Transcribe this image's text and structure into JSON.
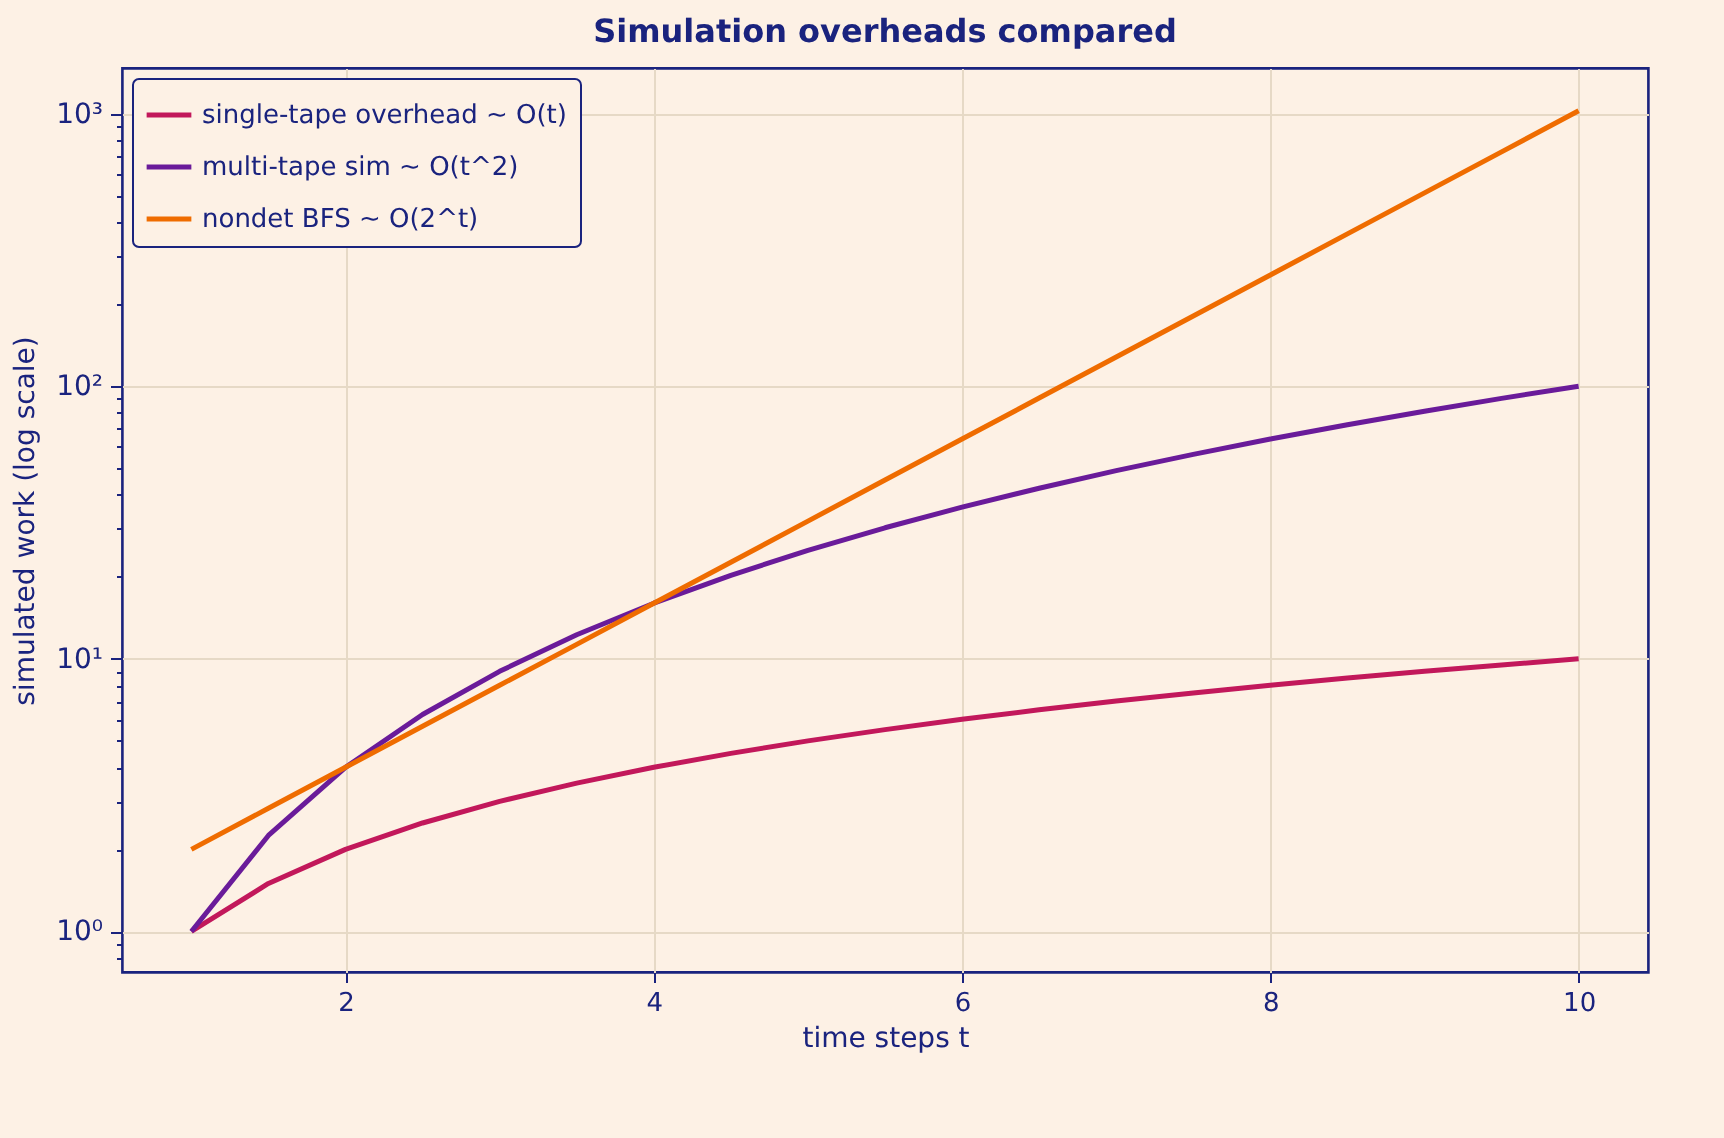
{
  "chart_data": {
    "type": "line",
    "title": "Simulation overheads compared",
    "xlabel": "time steps t",
    "ylabel": "simulated work (log scale)",
    "log": "y",
    "grid": true,
    "legend": "top left",
    "line_style": "solid",
    "marker": "none",
    "xlim": [
      0.55,
      10.45
    ],
    "xticks": [
      2,
      4,
      6,
      8,
      10
    ],
    "ylim": [
      0.71,
      1470
    ],
    "yticks": [
      {
        "value": 0.8,
        "label": null
      },
      {
        "value": 0.9,
        "label": null
      },
      {
        "value": 1,
        "label": "10⁰"
      },
      {
        "value": 2,
        "label": null
      },
      {
        "value": 3,
        "label": null
      },
      {
        "value": 4,
        "label": null
      },
      {
        "value": 5,
        "label": null
      },
      {
        "value": 6,
        "label": null
      },
      {
        "value": 7,
        "label": null
      },
      {
        "value": 8,
        "label": null
      },
      {
        "value": 9,
        "label": null
      },
      {
        "value": 10,
        "label": "10¹"
      },
      {
        "value": 20,
        "label": null
      },
      {
        "value": 30,
        "label": null
      },
      {
        "value": 40,
        "label": null
      },
      {
        "value": 50,
        "label": null
      },
      {
        "value": 60,
        "label": null
      },
      {
        "value": 70,
        "label": null
      },
      {
        "value": 80,
        "label": null
      },
      {
        "value": 90,
        "label": null
      },
      {
        "value": 100,
        "label": "10²"
      },
      {
        "value": 200,
        "label": null
      },
      {
        "value": 300,
        "label": null
      },
      {
        "value": 400,
        "label": null
      },
      {
        "value": 500,
        "label": null
      },
      {
        "value": 600,
        "label": null
      },
      {
        "value": 700,
        "label": null
      },
      {
        "value": 800,
        "label": null
      },
      {
        "value": 900,
        "label": null
      },
      {
        "value": 1000,
        "label": "10³"
      }
    ],
    "x": [
      1,
      1.5,
      2,
      2.5,
      3,
      3.5,
      4,
      4.5,
      5,
      5.5,
      6,
      6.5,
      7,
      7.5,
      8,
      8.5,
      9,
      9.5,
      10
    ],
    "series": [
      {
        "name": "single-tape overhead ~ O(t)",
        "color": "#c2185b",
        "values": [
          1,
          1.5,
          2,
          2.5,
          3,
          3.5,
          4,
          4.5,
          5,
          5.5,
          6,
          6.5,
          7,
          7.5,
          8,
          8.5,
          9,
          9.5,
          10
        ]
      },
      {
        "name": "multi-tape sim ~ O(t^2)",
        "color": "#6a1b9a",
        "values": [
          1,
          2.25,
          4,
          6.25,
          9,
          12.25,
          16,
          20.25,
          25,
          30.25,
          36,
          42.25,
          49,
          56.25,
          64,
          72.25,
          81,
          90.25,
          100
        ]
      },
      {
        "name": "nondet BFS ~ O(2^t)",
        "color": "#ef6c00",
        "values": [
          2,
          2.83,
          4,
          5.66,
          8,
          11.3,
          16,
          22.6,
          32,
          45.3,
          64,
          90.5,
          128,
          181,
          256,
          362,
          512,
          724,
          1024
        ]
      }
    ]
  }
}
